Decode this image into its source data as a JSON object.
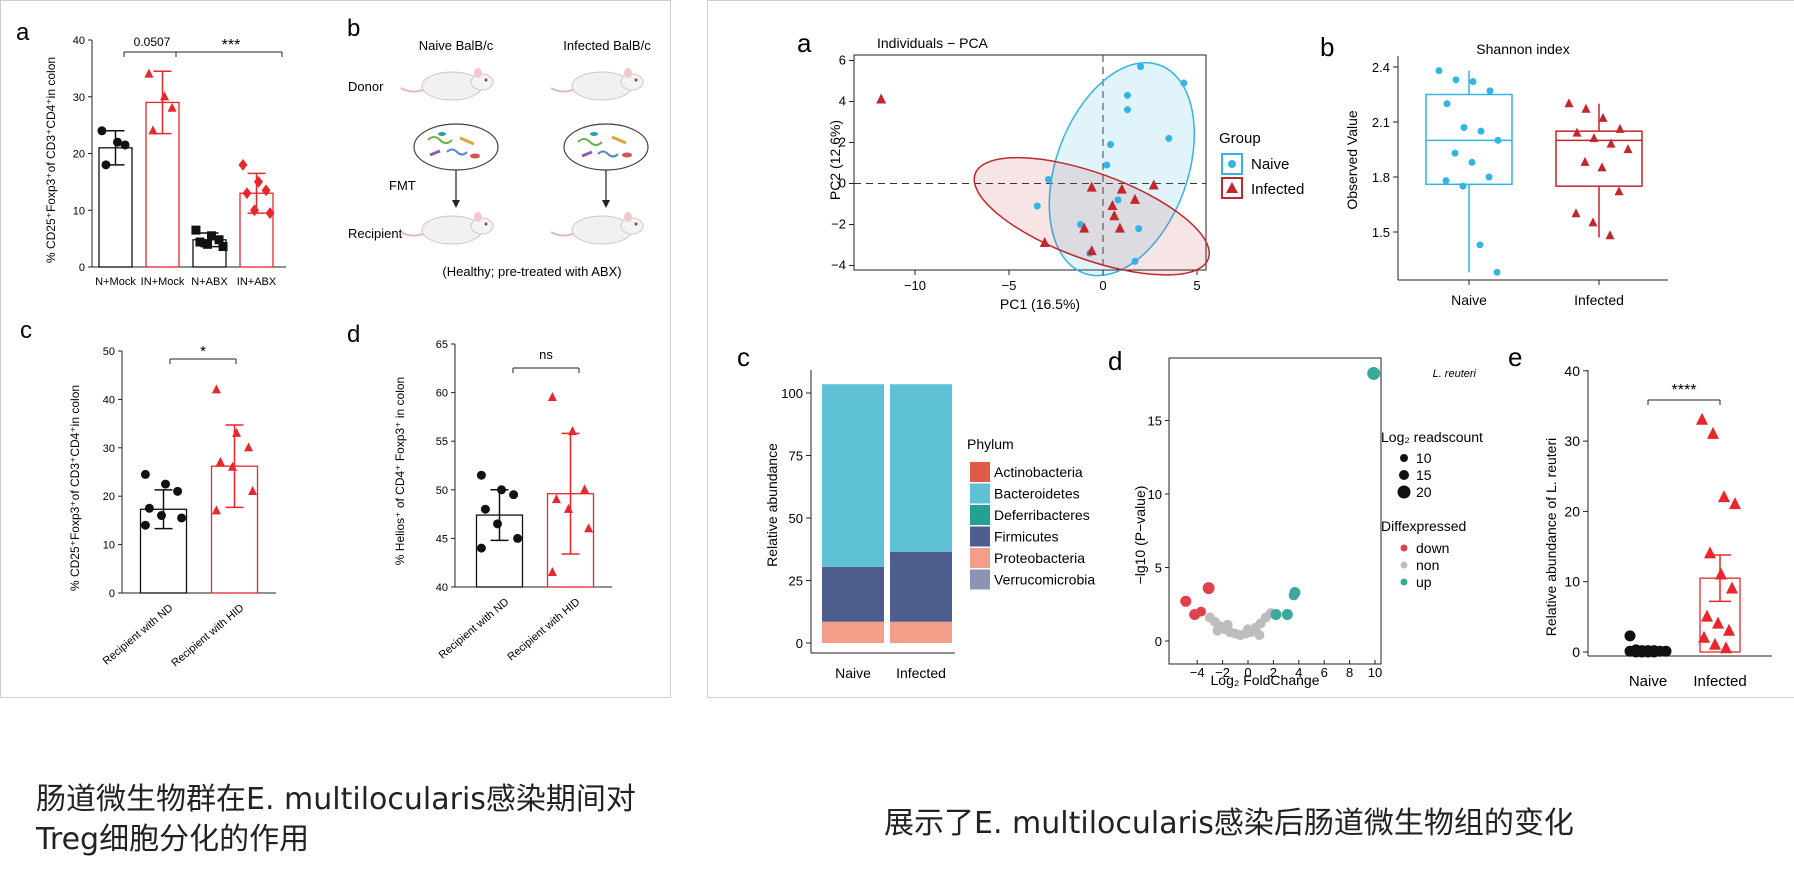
{
  "colors": {
    "red": "#e8262b",
    "black": "#111111",
    "naive_blue": "#33b4e3",
    "infected_red": "#c1272d",
    "gray": "#bdbdbd",
    "teal": "#3aa99b",
    "down_red": "#e0424c"
  },
  "left": {
    "a": {
      "letter": "a",
      "ylabel": "% CD25⁺Foxp3⁺of CD3⁺CD4⁺in colon",
      "yticks": [
        "0",
        "10",
        "20",
        "30",
        "40"
      ],
      "ymax": 40,
      "groups": [
        {
          "label": "N+Mock",
          "mean": 21,
          "sd": 3,
          "color": "black",
          "marker": "circle",
          "points": [
            24,
            22,
            21.5,
            18
          ]
        },
        {
          "label": "IN+Mock",
          "mean": 29,
          "sd": 5.5,
          "color": "red",
          "marker": "triangle",
          "points": [
            34,
            30,
            28,
            24
          ]
        },
        {
          "label": "N+ABX",
          "mean": 4.8,
          "sd": 1.2,
          "color": "black",
          "marker": "square",
          "points": [
            6.5,
            5.5,
            4.8,
            4.4,
            4,
            3.6
          ]
        },
        {
          "label": "IN+ABX",
          "mean": 13,
          "sd": 3.5,
          "color": "red",
          "marker": "diamond",
          "points": [
            18,
            15,
            13.5,
            13,
            10,
            9.5
          ]
        }
      ],
      "sig1": "0.0507",
      "sig2": "***"
    },
    "b": {
      "letter": "b",
      "naive": "Naive BalB/c",
      "infected": "Infected BalB/c",
      "donor": "Donor",
      "fmt": "FMT",
      "recipient": "Recipient",
      "note": "(Healthy; pre-treated with ABX)"
    },
    "c": {
      "letter": "c",
      "ylabel": "% CD25⁺Foxp3⁺of CD3⁺CD4⁺in colon",
      "yticks": [
        "0",
        "10",
        "20",
        "30",
        "40",
        "50"
      ],
      "ymax": 50,
      "groups": [
        {
          "label": "Recipient with ND",
          "mean": 17.3,
          "sd": 4,
          "color": "black",
          "marker": "circle",
          "points": [
            24.5,
            22.5,
            21,
            17.5,
            16,
            15.5,
            14
          ]
        },
        {
          "label": "Recipient with HID",
          "mean": 26.2,
          "sd": 8.5,
          "color": "red",
          "marker": "triangle",
          "points": [
            42,
            33,
            30,
            27,
            26,
            21,
            17
          ]
        }
      ],
      "sig": "*"
    },
    "d": {
      "letter": "d",
      "ylabel": "% Helios⁺ of CD4⁺ Foxp3⁺ in colon",
      "yticks": [
        "40",
        "45",
        "50",
        "55",
        "60",
        "65"
      ],
      "ymin": 40,
      "ymax": 65,
      "groups": [
        {
          "label": "Recipient with ND",
          "mean": 47.4,
          "sd": 2.6,
          "color": "black",
          "marker": "circle",
          "points": [
            51.5,
            50,
            49.5,
            48,
            46.5,
            45,
            44
          ]
        },
        {
          "label": "Recipient with HID",
          "mean": 49.6,
          "sd": 6.2,
          "color": "red",
          "marker": "triangle",
          "points": [
            59.5,
            56,
            50,
            49,
            48,
            46,
            41.5
          ]
        }
      ],
      "sig": "ns"
    }
  },
  "right": {
    "a": {
      "letter": "a",
      "title": "Individuals − PCA",
      "xlabel": "PC1 (16.5%)",
      "ylabel": "PC2 (12.6%)",
      "xticks": [
        "−10",
        "−5",
        "0",
        "5"
      ],
      "yticks": [
        "−4",
        "−2",
        "0",
        "2",
        "4",
        "6"
      ],
      "legend_title": "Group",
      "legend": [
        "Naive",
        "Infected"
      ],
      "naive": [
        [
          2,
          5.7
        ],
        [
          4.3,
          4.9
        ],
        [
          1.3,
          4.3
        ],
        [
          1.3,
          3.6
        ],
        [
          0.4,
          1.9
        ],
        [
          3.5,
          2.2
        ],
        [
          0.2,
          0.9
        ],
        [
          -2.9,
          0.2
        ],
        [
          -3.5,
          -1.1
        ],
        [
          1.9,
          -2.2
        ],
        [
          -1.2,
          -2
        ],
        [
          0.8,
          -0.8
        ],
        [
          -0.7,
          -3.4
        ],
        [
          1.7,
          -3.8
        ]
      ],
      "infected": [
        [
          -11.8,
          4.1
        ],
        [
          -3.1,
          -2.9
        ],
        [
          -0.6,
          -0.2
        ],
        [
          1,
          -0.3
        ],
        [
          2.7,
          -0.1
        ],
        [
          1.7,
          -0.8
        ],
        [
          0.6,
          -1.6
        ],
        [
          0.9,
          -2.2
        ],
        [
          -1,
          -2.2
        ],
        [
          -0.6,
          -3.3
        ],
        [
          0.5,
          -1.1
        ]
      ]
    },
    "b": {
      "letter": "b",
      "title": "Shannon index",
      "ylabel": "Observed Value",
      "yticks": [
        "1.5",
        "1.8",
        "2.1",
        "2.4"
      ],
      "xlabels": [
        "Naive",
        "Infected"
      ],
      "naive": {
        "q1": 1.76,
        "med": 2.0,
        "q3": 2.25,
        "lo": 1.28,
        "hi": 2.38,
        "pts": [
          2.38,
          2.33,
          2.32,
          2.27,
          2.2,
          2.07,
          2.05,
          2.0,
          1.93,
          1.88,
          1.8,
          1.78,
          1.75,
          1.43,
          1.28
        ]
      },
      "infected": {
        "q1": 1.75,
        "med": 2.0,
        "q3": 2.05,
        "lo": 1.47,
        "hi": 2.2,
        "pts": [
          2.2,
          2.17,
          2.12,
          2.06,
          2.04,
          2.01,
          1.98,
          1.95,
          1.88,
          1.85,
          1.72,
          1.6,
          1.55,
          1.48
        ]
      }
    },
    "c": {
      "letter": "c",
      "ylabel": "Relative abundance",
      "yticks": [
        "0",
        "25",
        "50",
        "75",
        "100"
      ],
      "xlabels": [
        "Naive",
        "Infected"
      ],
      "legend_title": "Phylum",
      "phyla": [
        {
          "name": "Actinobacteria",
          "color": "#e05a47"
        },
        {
          "name": "Bacteroidetes",
          "color": "#5ec1d6"
        },
        {
          "name": "Deferribacteres",
          "color": "#23a38f"
        },
        {
          "name": "Firmicutes",
          "color": "#4d5e8e"
        },
        {
          "name": "Proteobacteria",
          "color": "#f29e88"
        },
        {
          "name": "Verrucomicrobia",
          "color": "#8e93b6"
        }
      ],
      "naive": [
        0,
        73,
        0,
        22,
        8.5,
        0
      ],
      "infected": [
        0,
        67,
        0,
        28,
        8.5,
        0
      ]
    },
    "d": {
      "letter": "d",
      "xlabel": "Log₂ FoldChange",
      "ylabel": "−lg10 (P−value)",
      "xticks": [
        "−4",
        "−2",
        "0",
        "2",
        "4",
        "6",
        "8",
        "10"
      ],
      "yticks": [
        "0",
        "5",
        "10",
        "15"
      ],
      "annotation": "L. reuteri",
      "size_title": "Log₂ readscount",
      "sizes": [
        "10",
        "15",
        "20"
      ],
      "diff_title": "Diffexpressed",
      "diff": [
        "down",
        "non",
        "up"
      ]
    },
    "e": {
      "letter": "e",
      "ylabel": "Relative abundance of L. reuteri",
      "yticks": [
        "0",
        "10",
        "20",
        "30",
        "40"
      ],
      "xlabels": [
        "Naive",
        "Infected"
      ],
      "sig": "****",
      "naive_pts": [
        2.3,
        0.3,
        0.2,
        0.2,
        0.2,
        0.1,
        0.1,
        0.1,
        0,
        0,
        0,
        0
      ],
      "infected_pts": [
        33,
        31,
        22,
        21,
        14,
        11,
        9,
        5,
        4,
        3,
        2,
        1,
        0.5
      ],
      "infected_mean": 10.5,
      "infected_sem": 3.3
    }
  },
  "captions": {
    "left": "肠道微生物群在E. multilocularis感染期间对Treg细胞分化的作用",
    "right": "展示了E. multilocularis感染后肠道微生物组的变化"
  }
}
